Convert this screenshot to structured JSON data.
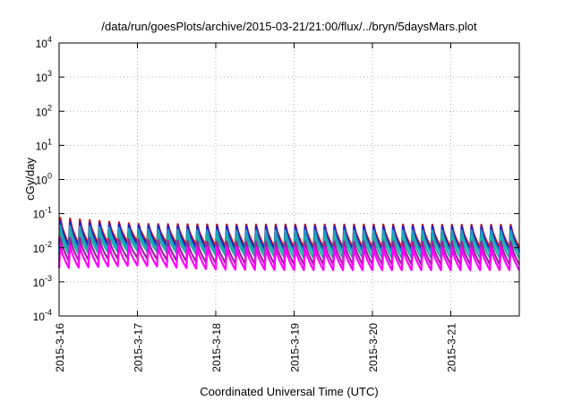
{
  "chart_data": {
    "type": "line",
    "title": "/data/run/goesPlots/archive/2015-03-21/21:00/flux/../bryn/5daysMars.plot",
    "xlabel": "Coordinated Universal Time (UTC)",
    "ylabel": "cGy/day",
    "yscale": "log",
    "ylim": [
      0.0001,
      10000
    ],
    "xlim": [
      "2015-03-16T00:00",
      "2015-03-21T21:00"
    ],
    "grid": true,
    "legend": "none",
    "x_ticks": [
      {
        "value": "2015-03-16",
        "label": "2015-3-16"
      },
      {
        "value": "2015-03-17",
        "label": "2015-3-17"
      },
      {
        "value": "2015-03-18",
        "label": "2015-3-18"
      },
      {
        "value": "2015-03-19",
        "label": "2015-3-19"
      },
      {
        "value": "2015-03-20",
        "label": "2015-3-20"
      },
      {
        "value": "2015-03-21",
        "label": "2015-3-21"
      }
    ],
    "y_ticks": [
      {
        "value": 0.0001,
        "base": "10",
        "exp": "-4"
      },
      {
        "value": 0.001,
        "base": "10",
        "exp": "-3"
      },
      {
        "value": 0.01,
        "base": "10",
        "exp": "-2"
      },
      {
        "value": 0.1,
        "base": "10",
        "exp": "-1"
      },
      {
        "value": 1,
        "base": "10",
        "exp": "0"
      },
      {
        "value": 10,
        "base": "10",
        "exp": "1"
      },
      {
        "value": 100,
        "base": "10",
        "exp": "2"
      },
      {
        "value": 1000,
        "base": "10",
        "exp": "3"
      },
      {
        "value": 10000,
        "base": "10",
        "exp": "4"
      }
    ],
    "sawtooth_period_hours": 3,
    "series": [
      {
        "color": "#d01010",
        "peak": [
          0.075,
          0.05,
          0.048,
          0.048,
          0.048,
          0.047
        ],
        "trough": [
          0.012,
          0.015,
          0.011,
          0.01,
          0.01,
          0.01
        ]
      },
      {
        "color": "#2020c8",
        "peak": [
          0.06,
          0.045,
          0.042,
          0.042,
          0.042,
          0.042
        ],
        "trough": [
          0.01,
          0.012,
          0.009,
          0.008,
          0.008,
          0.008
        ]
      },
      {
        "color": "#1aa0c8",
        "peak": [
          0.045,
          0.035,
          0.032,
          0.032,
          0.032,
          0.032
        ],
        "trough": [
          0.008,
          0.01,
          0.007,
          0.007,
          0.007,
          0.007
        ]
      },
      {
        "color": "#20b0a0",
        "peak": [
          0.03,
          0.025,
          0.022,
          0.022,
          0.022,
          0.022
        ],
        "trough": [
          0.006,
          0.008,
          0.006,
          0.005,
          0.005,
          0.005
        ]
      },
      {
        "color": "#a020a0",
        "peak": [
          0.02,
          0.017,
          0.015,
          0.015,
          0.015,
          0.015
        ],
        "trough": [
          0.004,
          0.005,
          0.0035,
          0.0032,
          0.0032,
          0.0032
        ]
      },
      {
        "color": "#ff00ff",
        "peak": [
          0.012,
          0.011,
          0.01,
          0.01,
          0.01,
          0.01
        ],
        "trough": [
          0.0025,
          0.003,
          0.0023,
          0.0022,
          0.0022,
          0.0022
        ]
      }
    ]
  }
}
